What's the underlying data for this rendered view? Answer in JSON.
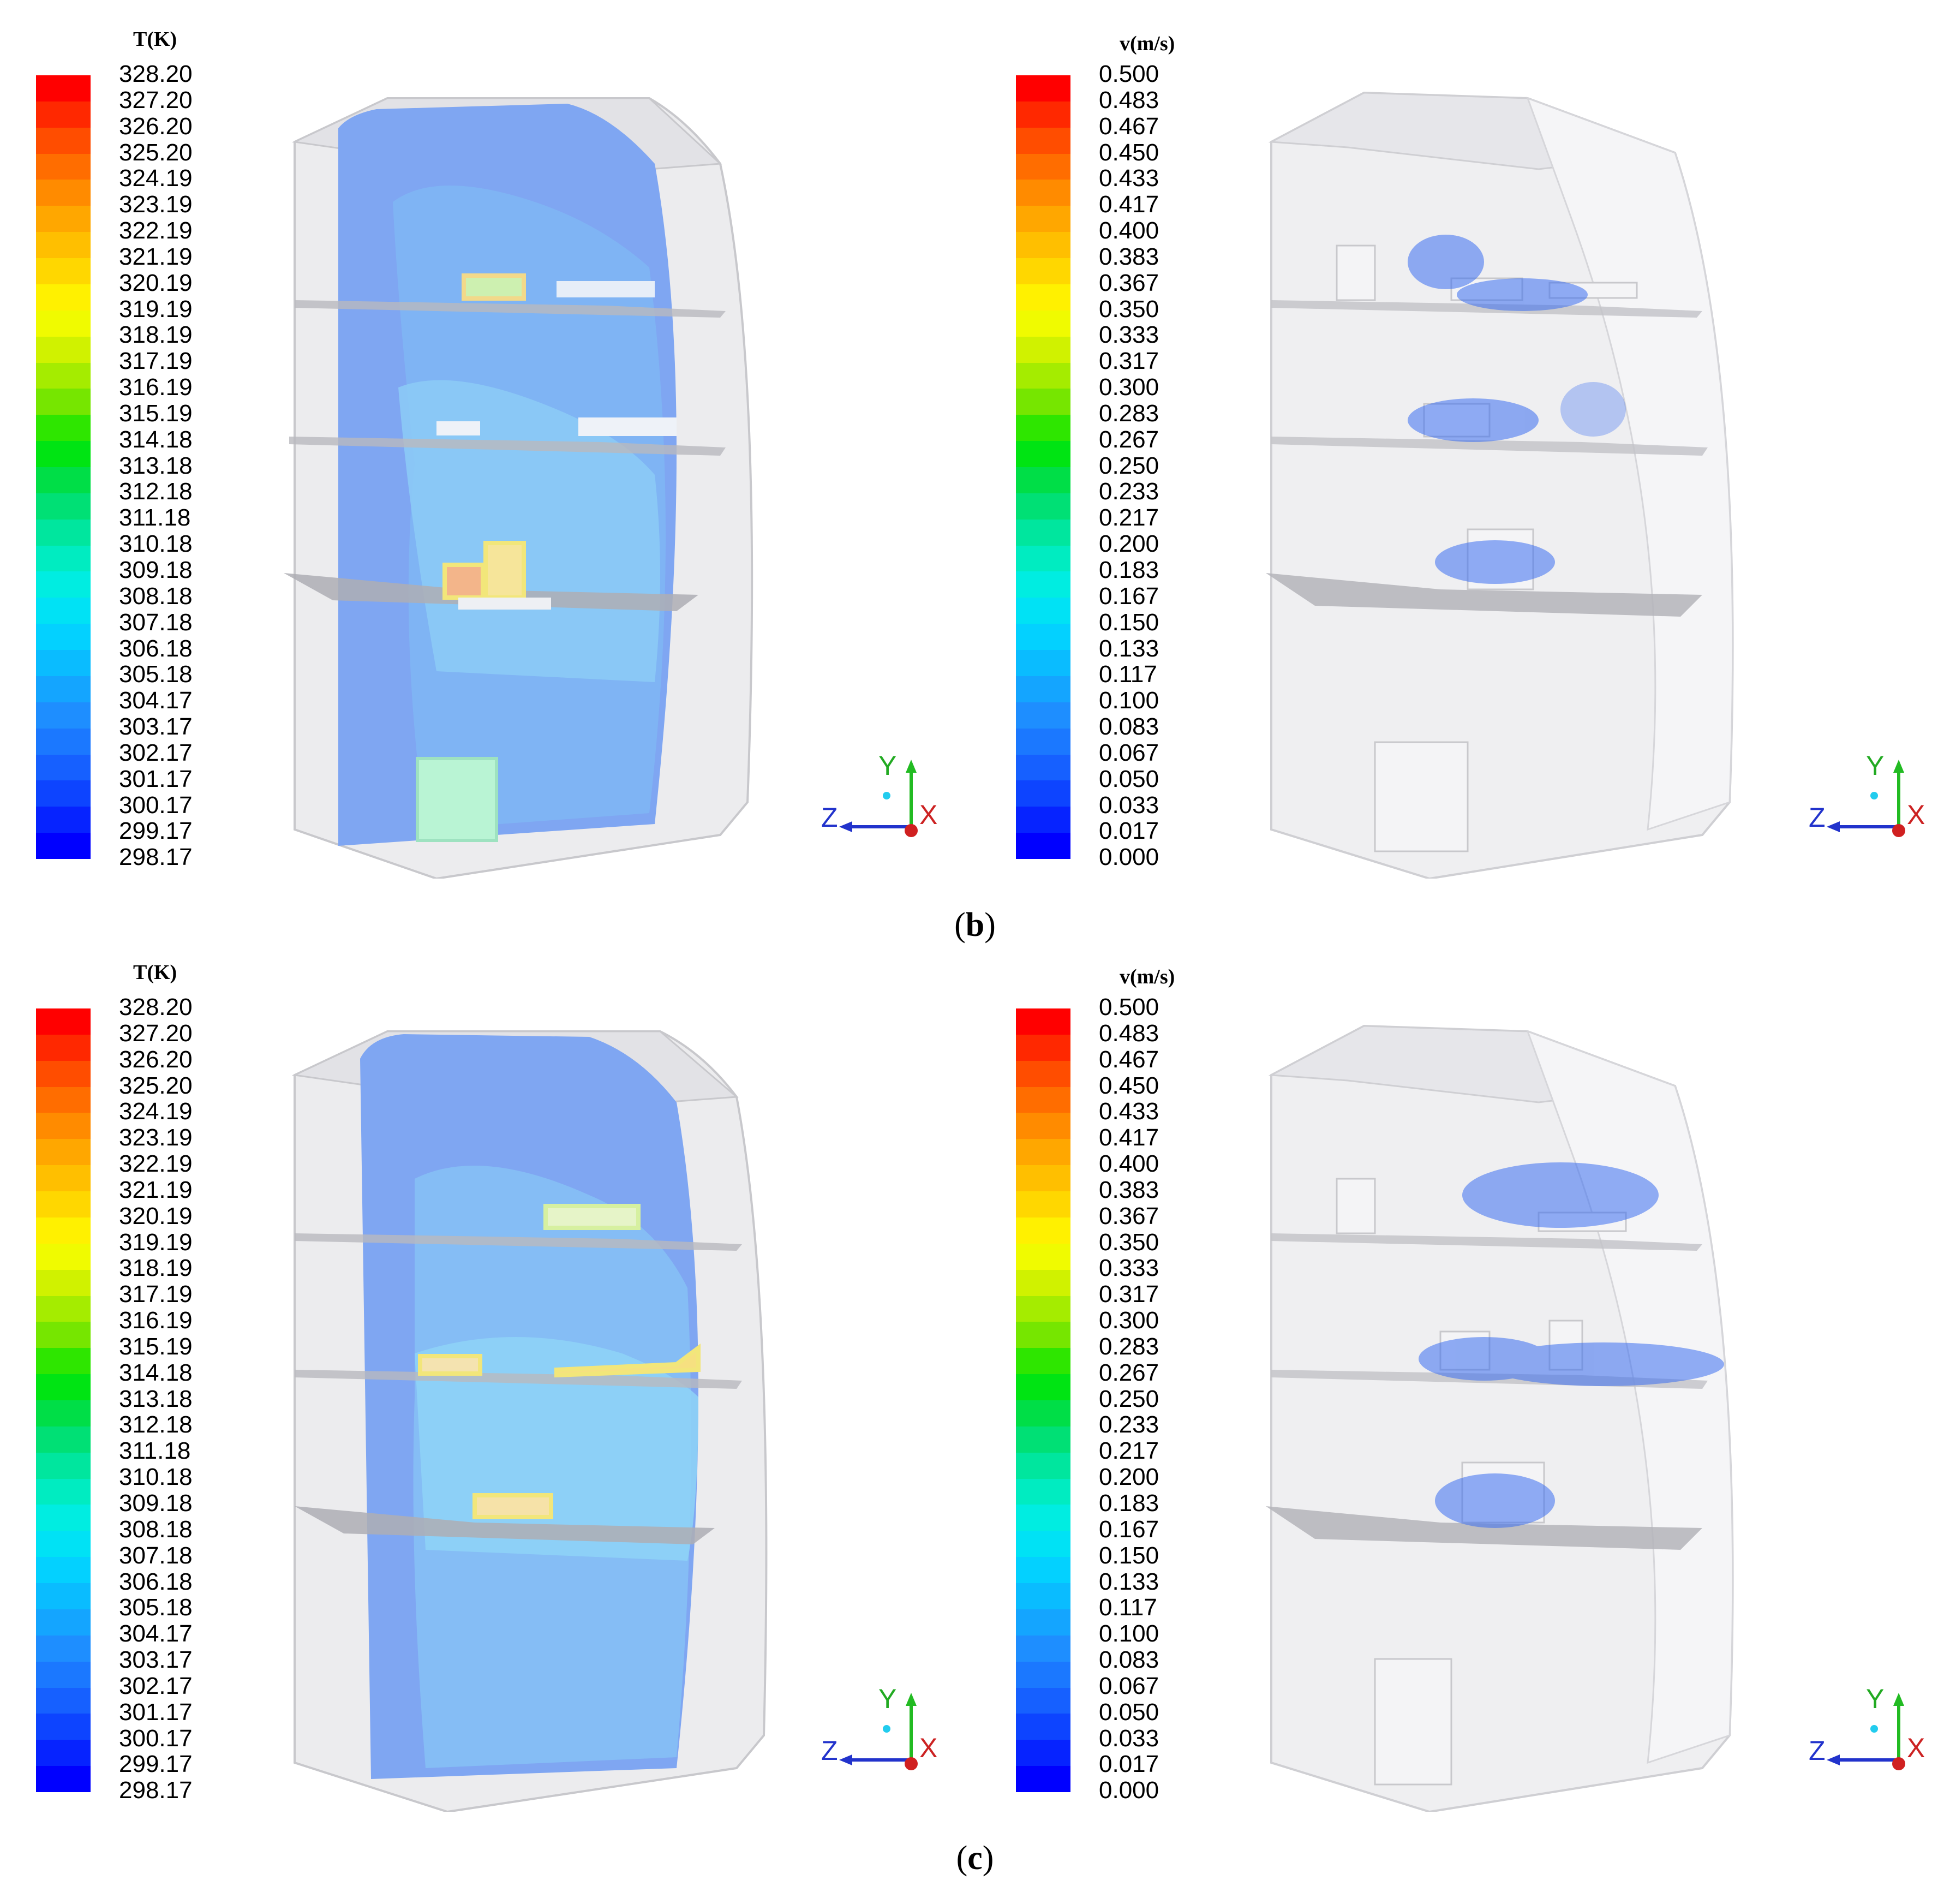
{
  "panels": [
    {
      "caption": "b",
      "temperature": {
        "title": "T(K)",
        "labels": [
          "328.20",
          "327.20",
          "326.20",
          "325.20",
          "324.19",
          "323.19",
          "322.19",
          "321.19",
          "320.19",
          "319.19",
          "318.19",
          "317.19",
          "316.19",
          "315.19",
          "314.18",
          "313.18",
          "312.18",
          "311.18",
          "310.18",
          "309.18",
          "308.18",
          "307.18",
          "306.18",
          "305.18",
          "304.17",
          "303.17",
          "302.17",
          "301.17",
          "300.17",
          "299.17",
          "298.17"
        ]
      },
      "velocity": {
        "title": "v(m/s)",
        "labels": [
          "0.500",
          "0.483",
          "0.467",
          "0.450",
          "0.433",
          "0.417",
          "0.400",
          "0.383",
          "0.367",
          "0.350",
          "0.333",
          "0.317",
          "0.300",
          "0.283",
          "0.267",
          "0.250",
          "0.233",
          "0.217",
          "0.200",
          "0.183",
          "0.167",
          "0.150",
          "0.133",
          "0.117",
          "0.100",
          "0.083",
          "0.067",
          "0.050",
          "0.033",
          "0.017",
          "0.000"
        ]
      }
    },
    {
      "caption": "c",
      "temperature": {
        "title": "T(K)",
        "labels": [
          "328.20",
          "327.20",
          "326.20",
          "325.20",
          "324.19",
          "323.19",
          "322.19",
          "321.19",
          "320.19",
          "319.19",
          "318.19",
          "317.19",
          "316.19",
          "315.19",
          "314.18",
          "313.18",
          "312.18",
          "311.18",
          "310.18",
          "309.18",
          "308.18",
          "307.18",
          "306.18",
          "305.18",
          "304.17",
          "303.17",
          "302.17",
          "301.17",
          "300.17",
          "299.17",
          "298.17"
        ]
      },
      "velocity": {
        "title": "v(m/s)",
        "labels": [
          "0.500",
          "0.483",
          "0.467",
          "0.450",
          "0.433",
          "0.417",
          "0.400",
          "0.383",
          "0.367",
          "0.350",
          "0.333",
          "0.317",
          "0.300",
          "0.283",
          "0.267",
          "0.250",
          "0.233",
          "0.217",
          "0.200",
          "0.183",
          "0.167",
          "0.150",
          "0.133",
          "0.117",
          "0.100",
          "0.083",
          "0.067",
          "0.050",
          "0.033",
          "0.017",
          "0.000"
        ]
      }
    }
  ],
  "triad": {
    "y": "Y",
    "z": "Z",
    "x": "X"
  },
  "colors": {
    "colormap": [
      "#0000ff",
      "#0a3cff",
      "#1a6cff",
      "#1e90ff",
      "#0bb8ff",
      "#00dcff",
      "#00f0dc",
      "#00e6a0",
      "#00dc5a",
      "#00e600",
      "#7ae600",
      "#c8f000",
      "#ffff00",
      "#ffd200",
      "#ffaa00",
      "#ff7a00",
      "#ff4400",
      "#ff0000"
    ],
    "shell": "#e6e6e8",
    "temperature_field": "#7fa9ff",
    "arrow": "#3a6ef0"
  }
}
